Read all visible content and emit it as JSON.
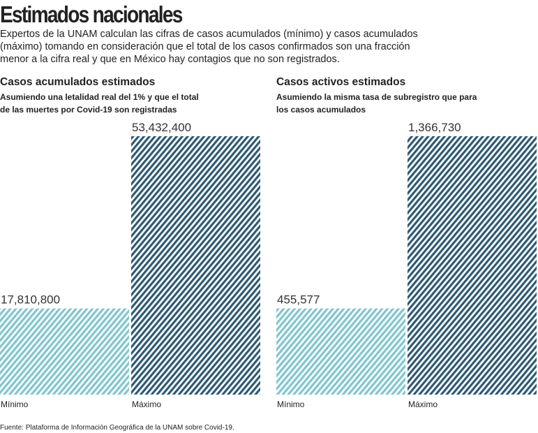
{
  "title": "Estimados nacionales",
  "description": "Expertos de la UNAM calculan las cifras de casos acumulados (mínimo) y casos acumulados (máximo) tomando en consideración que el total de los casos confirmados son una fracción menor a la cifra real y que en México hay contagios que no son registrados.",
  "source": "Fuente: Plataforma de Información Geográfica de la UNAM sobre Covid-19.",
  "chart_data": [
    {
      "type": "bar",
      "title": "Casos acumulados estimados",
      "subtitle": "Asumiendo una letalidad real del 1% y que el total de las muertes por Covid-19 son registradas",
      "categories": [
        "Mínimo",
        "Máximo"
      ],
      "values": [
        17810800,
        53432400
      ],
      "value_labels": [
        "17,810,800",
        "53,432,400"
      ],
      "colors": [
        "#7ec6cf",
        "#2e5a73"
      ]
    },
    {
      "type": "bar",
      "title": "Casos activos estimados",
      "subtitle": "Asumiendo la misma tasa de subregistro que para los casos acumulados",
      "categories": [
        "Mínimo",
        "Máximo"
      ],
      "values": [
        455577,
        1366730
      ],
      "value_labels": [
        "455,577",
        "1,366,730"
      ],
      "colors": [
        "#7ec6cf",
        "#2e5a73"
      ]
    }
  ]
}
